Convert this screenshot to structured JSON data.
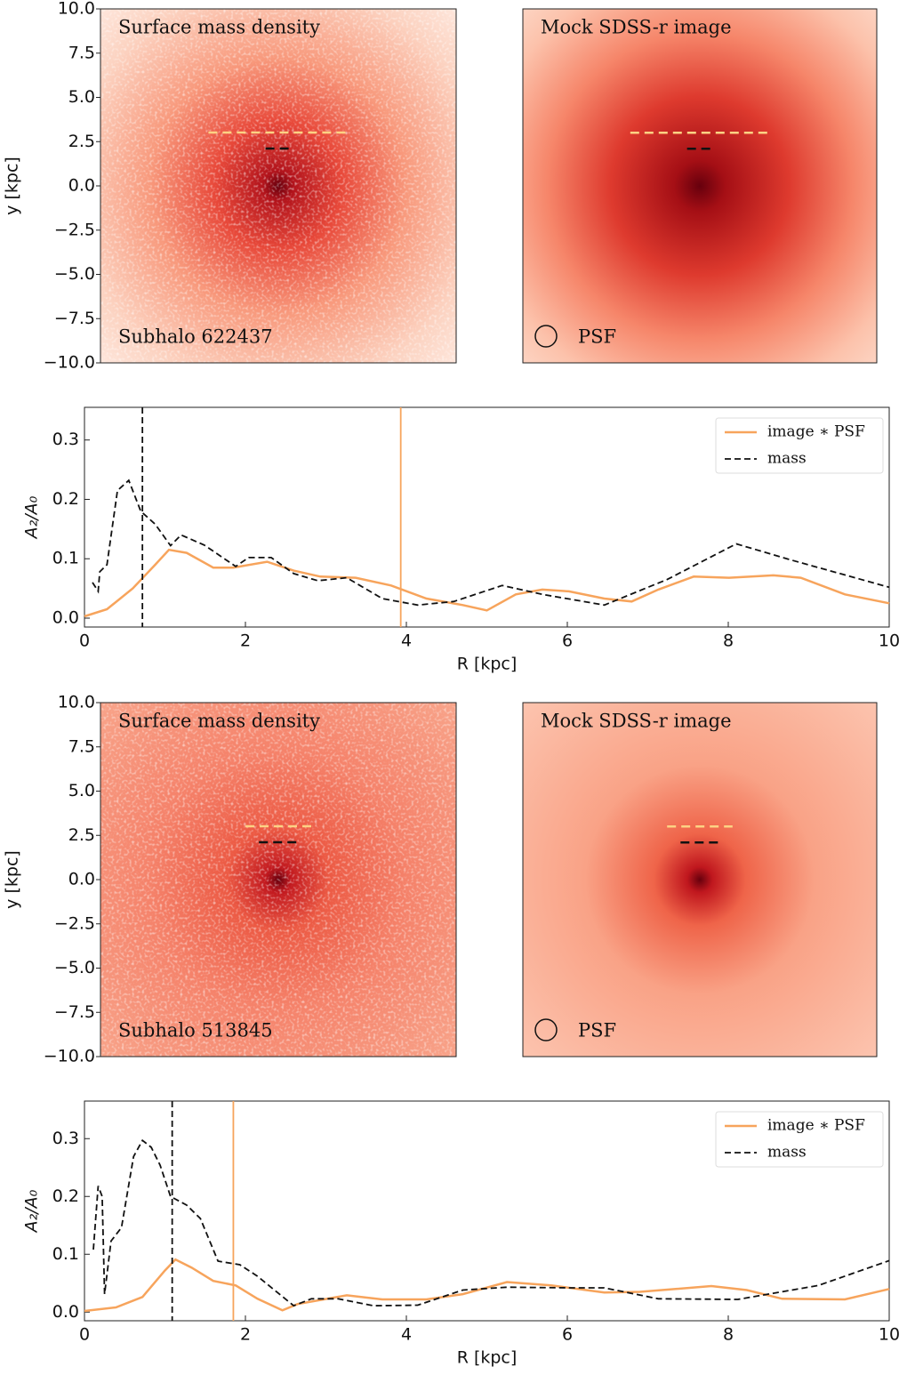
{
  "chart_data": [
    {
      "type": "image",
      "title": "Surface mass density",
      "annotation": "Subhalo 622437",
      "ylabel": "y [kpc]",
      "xlim": [
        -10,
        10
      ],
      "ylim": [
        -10,
        10
      ],
      "yticks": [
        {
          "value": 10,
          "label": "10.0"
        },
        {
          "value": 7.5,
          "label": "7.5"
        },
        {
          "value": 5,
          "label": "5.0"
        },
        {
          "value": 2.5,
          "label": "2.5"
        },
        {
          "value": 0,
          "label": "0.0"
        },
        {
          "value": -2.5,
          "label": "−2.5"
        },
        {
          "value": -5,
          "label": "−5.0"
        },
        {
          "value": -7.5,
          "label": "−7.5"
        },
        {
          "value": -10,
          "label": "−10.0"
        }
      ]
    },
    {
      "type": "image",
      "title": "Mock SDSS-r image",
      "psf": "PSF",
      "xlim": [
        -10,
        10
      ]
    },
    {
      "type": "line",
      "xlabel": "R [kpc]",
      "ylabel": "A₂/A₀",
      "legend": "upper right",
      "xlim": [
        0,
        10
      ],
      "ylim": [
        -0.015,
        0.355
      ],
      "xticks": [
        0,
        2,
        4,
        6,
        8,
        10
      ],
      "yticks": [
        {
          "value": 0,
          "label": "0.0"
        },
        {
          "value": 0.1,
          "label": "0.1"
        },
        {
          "value": 0.2,
          "label": "0.2"
        },
        {
          "value": 0.3,
          "label": "0.3"
        }
      ],
      "series": [
        {
          "name": "image ∗ PSF",
          "color": "#f7a45c",
          "linestyle": "solid",
          "x": [
            0,
            0.28,
            0.6,
            0.88,
            1.05,
            1.27,
            1.6,
            1.85,
            2.27,
            2.6,
            2.93,
            3.37,
            3.81,
            4.25,
            4.7,
            5.0,
            5.36,
            5.69,
            6.02,
            6.46,
            6.8,
            7.13,
            7.57,
            8.01,
            8.56,
            8.9,
            9.45,
            10
          ],
          "values": [
            0.003,
            0.015,
            0.05,
            0.09,
            0.115,
            0.11,
            0.085,
            0.085,
            0.095,
            0.08,
            0.07,
            0.068,
            0.055,
            0.033,
            0.022,
            0.013,
            0.04,
            0.048,
            0.045,
            0.033,
            0.028,
            0.048,
            0.07,
            0.068,
            0.072,
            0.068,
            0.04,
            0.025
          ]
        },
        {
          "name": "mass",
          "color": "#111111",
          "linestyle": "dashed",
          "x": [
            0.1,
            0.17,
            0.19,
            0.28,
            0.41,
            0.55,
            0.7,
            0.88,
            1.07,
            1.2,
            1.49,
            1.88,
            2.04,
            2.32,
            2.6,
            2.9,
            3.26,
            3.7,
            4.14,
            4.59,
            5.19,
            5.69,
            6.46,
            7.24,
            8.1,
            8.78,
            10
          ],
          "values": [
            0.06,
            0.045,
            0.078,
            0.09,
            0.215,
            0.232,
            0.18,
            0.158,
            0.122,
            0.14,
            0.123,
            0.087,
            0.102,
            0.102,
            0.075,
            0.063,
            0.068,
            0.033,
            0.022,
            0.028,
            0.055,
            0.04,
            0.022,
            0.065,
            0.125,
            0.098,
            0.052
          ]
        }
      ],
      "vlines": [
        {
          "x": 0.72,
          "color": "#111111",
          "linestyle": "dashed"
        },
        {
          "x": 3.93,
          "color": "#f7a45c",
          "linestyle": "solid"
        }
      ]
    },
    {
      "type": "image",
      "title": "Surface mass density",
      "annotation": "Subhalo 513845",
      "ylabel": "y [kpc]",
      "xlim": [
        -10,
        10
      ],
      "ylim": [
        -10,
        10
      ],
      "yticks": [
        {
          "value": 10,
          "label": "10.0"
        },
        {
          "value": 7.5,
          "label": "7.5"
        },
        {
          "value": 5,
          "label": "5.0"
        },
        {
          "value": 2.5,
          "label": "2.5"
        },
        {
          "value": 0,
          "label": "0.0"
        },
        {
          "value": -2.5,
          "label": "−2.5"
        },
        {
          "value": -5,
          "label": "−5.0"
        },
        {
          "value": -7.5,
          "label": "−7.5"
        },
        {
          "value": -10,
          "label": "−10.0"
        }
      ]
    },
    {
      "type": "image",
      "title": "Mock SDSS-r image",
      "psf": "PSF",
      "xlim": [
        -10,
        10
      ]
    },
    {
      "type": "line",
      "xlabel": "R [kpc]",
      "ylabel": "A₂/A₀",
      "legend": "upper right",
      "xlim": [
        0,
        10
      ],
      "ylim": [
        -0.015,
        0.365
      ],
      "xticks": [
        0,
        2,
        4,
        6,
        8,
        10
      ],
      "yticks": [
        {
          "value": 0,
          "label": "0.0"
        },
        {
          "value": 0.1,
          "label": "0.1"
        },
        {
          "value": 0.2,
          "label": "0.2"
        },
        {
          "value": 0.3,
          "label": "0.3"
        }
      ],
      "series": [
        {
          "name": "image ∗ PSF",
          "color": "#f7a45c",
          "linestyle": "solid",
          "x": [
            0,
            0.39,
            0.72,
            1.0,
            1.13,
            1.33,
            1.6,
            1.88,
            2.15,
            2.46,
            2.65,
            3.26,
            3.7,
            4.25,
            4.7,
            5.25,
            5.8,
            6.46,
            6.9,
            7.79,
            8.23,
            8.67,
            9.45,
            10
          ],
          "values": [
            0.002,
            0.008,
            0.026,
            0.072,
            0.091,
            0.077,
            0.054,
            0.046,
            0.023,
            0.003,
            0.014,
            0.029,
            0.022,
            0.022,
            0.031,
            0.052,
            0.046,
            0.034,
            0.035,
            0.045,
            0.038,
            0.023,
            0.022,
            0.04
          ]
        },
        {
          "name": "mass",
          "color": "#111111",
          "linestyle": "dashed",
          "x": [
            0.11,
            0.17,
            0.22,
            0.25,
            0.33,
            0.46,
            0.61,
            0.72,
            0.83,
            0.94,
            1.07,
            1.27,
            1.44,
            1.66,
            1.93,
            2.15,
            2.6,
            2.82,
            3.15,
            3.59,
            4.14,
            4.7,
            5.25,
            6.02,
            6.46,
            7.13,
            8.12,
            9.12,
            10
          ],
          "values": [
            0.108,
            0.218,
            0.2,
            0.031,
            0.123,
            0.146,
            0.269,
            0.297,
            0.285,
            0.254,
            0.2,
            0.185,
            0.162,
            0.088,
            0.082,
            0.062,
            0.011,
            0.023,
            0.023,
            0.011,
            0.012,
            0.038,
            0.043,
            0.042,
            0.042,
            0.023,
            0.022,
            0.046,
            0.089
          ]
        }
      ],
      "vlines": [
        {
          "x": 1.09,
          "color": "#111111",
          "linestyle": "dashed"
        },
        {
          "x": 1.85,
          "color": "#f7a45c",
          "linestyle": "solid"
        }
      ]
    }
  ]
}
